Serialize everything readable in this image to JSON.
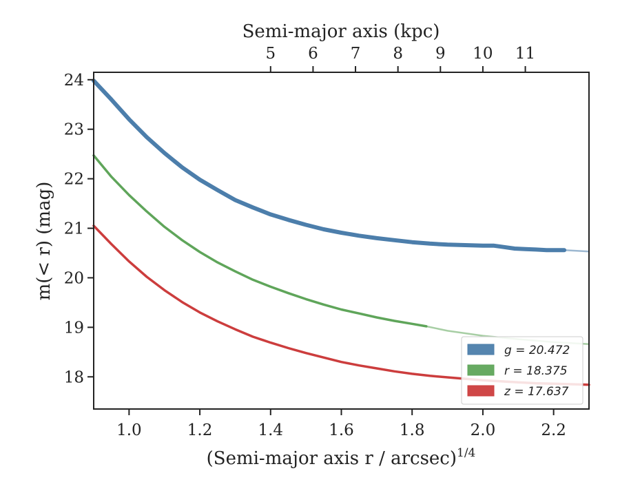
{
  "chart_data": {
    "type": "line",
    "title": "",
    "xlabel": "(Semi-major axis r / arcsec)",
    "xlabel_sup": "1/4",
    "ylabel": "m(< r) (mag)",
    "top_xlabel": "Semi-major axis (kpc)",
    "xlim": [
      0.9,
      2.3
    ],
    "ylim": [
      24.15,
      17.35
    ],
    "y_inverted": true,
    "x_ticks": [
      1.0,
      1.2,
      1.4,
      1.6,
      1.8,
      2.0,
      2.2
    ],
    "x_tick_labels": [
      "1.0",
      "1.2",
      "1.4",
      "1.6",
      "1.8",
      "2.0",
      "2.2"
    ],
    "y_ticks": [
      18,
      19,
      20,
      21,
      22,
      23,
      24
    ],
    "y_tick_labels": [
      "18",
      "19",
      "20",
      "21",
      "22",
      "23",
      "24"
    ],
    "top_x_ticks": [
      5,
      6,
      7,
      8,
      9,
      10,
      11
    ],
    "top_x_tick_labels": [
      "5",
      "6",
      "7",
      "8",
      "9",
      "10",
      "11"
    ],
    "legend_position": "lower-right",
    "grid": false,
    "series": [
      {
        "name": "g = 20.472",
        "color": "#4c7eab",
        "x": [
          0.9,
          0.95,
          1.0,
          1.05,
          1.1,
          1.15,
          1.2,
          1.25,
          1.3,
          1.35,
          1.4,
          1.45,
          1.5,
          1.55,
          1.6,
          1.65,
          1.7,
          1.75,
          1.8,
          1.85,
          1.9,
          1.95,
          2.0,
          2.03,
          2.06,
          2.09,
          2.12,
          2.15,
          2.18,
          2.21,
          2.23
        ],
        "y": [
          23.98,
          23.6,
          23.2,
          22.84,
          22.52,
          22.23,
          21.98,
          21.77,
          21.57,
          21.42,
          21.28,
          21.17,
          21.07,
          20.98,
          20.91,
          20.85,
          20.8,
          20.76,
          20.72,
          20.69,
          20.67,
          20.66,
          20.65,
          20.65,
          20.62,
          20.59,
          20.58,
          20.57,
          20.56,
          20.56,
          20.56
        ],
        "extrapolation": {
          "x": [
            2.23,
            2.3
          ],
          "y": [
            20.56,
            20.53
          ]
        }
      },
      {
        "name": "r = 18.375",
        "color": "#5fa55a",
        "x": [
          0.9,
          0.95,
          1.0,
          1.05,
          1.1,
          1.15,
          1.2,
          1.25,
          1.3,
          1.35,
          1.4,
          1.45,
          1.5,
          1.55,
          1.6,
          1.65,
          1.7,
          1.75,
          1.8,
          1.84
        ],
        "y": [
          22.47,
          22.04,
          21.67,
          21.34,
          21.03,
          20.76,
          20.52,
          20.31,
          20.13,
          19.96,
          19.82,
          19.69,
          19.57,
          19.46,
          19.36,
          19.28,
          19.2,
          19.13,
          19.07,
          19.02
        ],
        "extrapolation": {
          "x": [
            1.84,
            1.9,
            2.0,
            2.1,
            2.2,
            2.3
          ],
          "y": [
            19.02,
            18.93,
            18.83,
            18.76,
            18.7,
            18.66
          ]
        }
      },
      {
        "name": "z = 17.637",
        "color": "#cc3d3d",
        "x": [
          0.9,
          0.95,
          1.0,
          1.05,
          1.1,
          1.15,
          1.2,
          1.25,
          1.3,
          1.35,
          1.4,
          1.45,
          1.5,
          1.55,
          1.6,
          1.65,
          1.7,
          1.75,
          1.8,
          1.85,
          1.9,
          1.95,
          2.0,
          2.05,
          2.1,
          2.15,
          2.2,
          2.25,
          2.3
        ],
        "y": [
          21.05,
          20.68,
          20.33,
          20.02,
          19.75,
          19.51,
          19.3,
          19.12,
          18.96,
          18.81,
          18.69,
          18.58,
          18.48,
          18.39,
          18.3,
          18.23,
          18.17,
          18.11,
          18.06,
          18.02,
          17.99,
          17.96,
          17.93,
          17.91,
          17.89,
          17.87,
          17.86,
          17.85,
          17.84
        ],
        "extrapolation": {
          "x": [],
          "y": []
        }
      }
    ]
  }
}
